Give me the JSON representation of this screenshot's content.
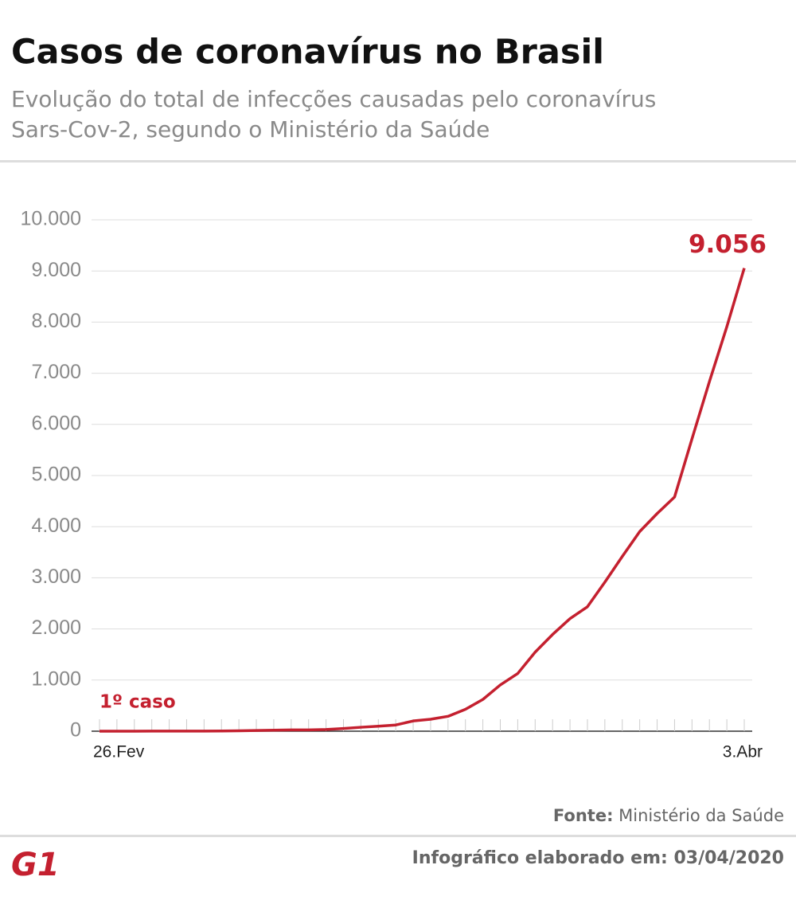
{
  "chart_data": {
    "type": "line",
    "title": "Casos de coronavírus no Brasil",
    "subtitle": [
      "Evolução do total de infecções causadas pelo coronavírus",
      "Sars-Cov-2, segundo o Ministério da Saúde"
    ],
    "categories": [
      "26.Fev",
      null,
      null,
      null,
      null,
      null,
      null,
      null,
      null,
      null,
      null,
      null,
      null,
      null,
      null,
      null,
      null,
      null,
      null,
      null,
      null,
      null,
      null,
      null,
      null,
      null,
      null,
      null,
      null,
      null,
      null,
      null,
      null,
      null,
      null,
      null,
      null,
      "3.Abr"
    ],
    "values": [
      1,
      1,
      1,
      2,
      2,
      2,
      2,
      3,
      8,
      13,
      19,
      25,
      25,
      34,
      52,
      77,
      98,
      121,
      200,
      234,
      291,
      428,
      621,
      904,
      1128,
      1546,
      1891,
      2201,
      2433,
      2915,
      3417,
      3904,
      4256,
      4579,
      5717,
      6836,
      7910,
      9056
    ],
    "value_labels": [
      null,
      null,
      null,
      null,
      null,
      null,
      null,
      null,
      null,
      null,
      null,
      null,
      null,
      null,
      null,
      null,
      null,
      null,
      null,
      null,
      null,
      null,
      null,
      null,
      null,
      null,
      null,
      null,
      null,
      null,
      null,
      null,
      null,
      null,
      null,
      null,
      null,
      "9.056"
    ],
    "color": "#c4202f",
    "annotations": [
      "1º caso"
    ],
    "ylim": [
      0,
      10000
    ],
    "yticks": [
      0,
      {
        "value": 1000,
        "label": "1.000"
      },
      {
        "value": 2000,
        "label": "2.000"
      },
      {
        "value": 3000,
        "label": "3.000"
      },
      {
        "value": 4000,
        "label": "4.000"
      },
      {
        "value": 5000,
        "label": "5.000"
      },
      {
        "value": 6000,
        "label": "6.000"
      },
      {
        "value": 7000,
        "label": "7.000"
      },
      {
        "value": 8000,
        "label": "8.000"
      },
      {
        "value": 9000,
        "label": "9.000"
      },
      {
        "value": 10000,
        "label": "10.000"
      }
    ],
    "grid": true
  },
  "source": {
    "label": "Fonte:",
    "text": "Ministério da Saúde"
  },
  "credit": "Infográfico elaborado em: 03/04/2020",
  "logo": "G1"
}
